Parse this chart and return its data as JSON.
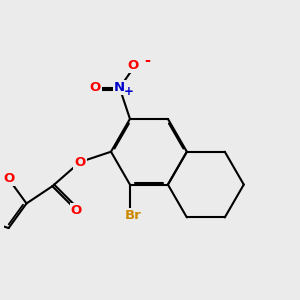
{
  "background_color": "#ebebeb",
  "bond_color": "#000000",
  "bond_width": 1.5,
  "atom_colors": {
    "O": "#ff0000",
    "N": "#0000cc",
    "Br": "#cc8800",
    "C": "#000000"
  },
  "font_size": 9.5
}
